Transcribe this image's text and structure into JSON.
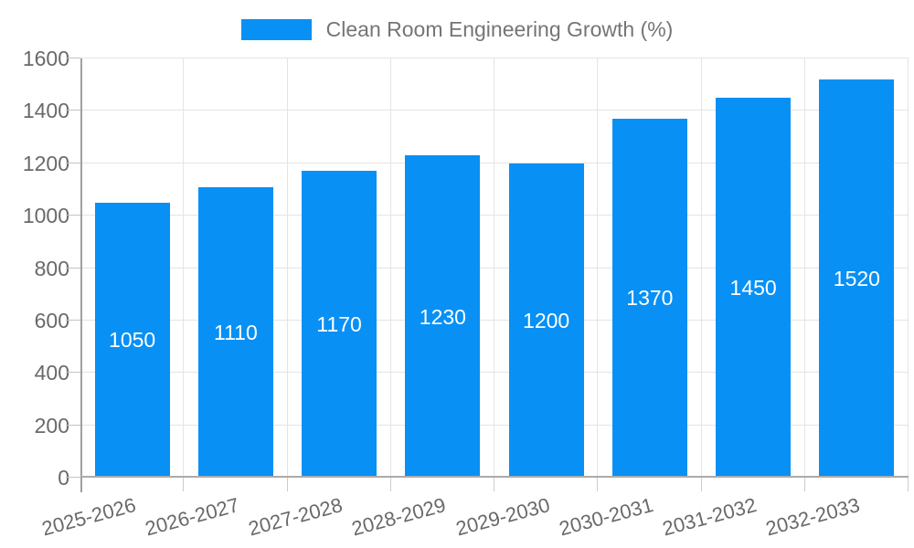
{
  "legend": {
    "label": "Clean Room Engineering Growth (%)",
    "swatch_color": "#0890f5"
  },
  "chart_data": {
    "type": "bar",
    "title": "Clean Room Engineering Growth (%)",
    "categories": [
      "2025-2026",
      "2026-2027",
      "2027-2028",
      "2028-2029",
      "2029-2030",
      "2030-2031",
      "2031-2032",
      "2032-2033"
    ],
    "values": [
      1050,
      1110,
      1170,
      1230,
      1200,
      1370,
      1450,
      1520
    ],
    "xlabel": "",
    "ylabel": "",
    "ylim": [
      0,
      1600
    ],
    "yticks": [
      0,
      200,
      400,
      600,
      800,
      1000,
      1200,
      1400,
      1600
    ],
    "grid": true,
    "legend_position": "top-center",
    "bar_color": "#0890f5",
    "value_label_color": "#ffffff",
    "value_label_position": "inside-middle"
  },
  "colors": {
    "background": "#ffffff",
    "gridline": "#e4e4e4",
    "axis": "#a8a8a8",
    "tick": "#c6c6c6",
    "axis_text": "#696969",
    "legend_text": "#757575"
  }
}
